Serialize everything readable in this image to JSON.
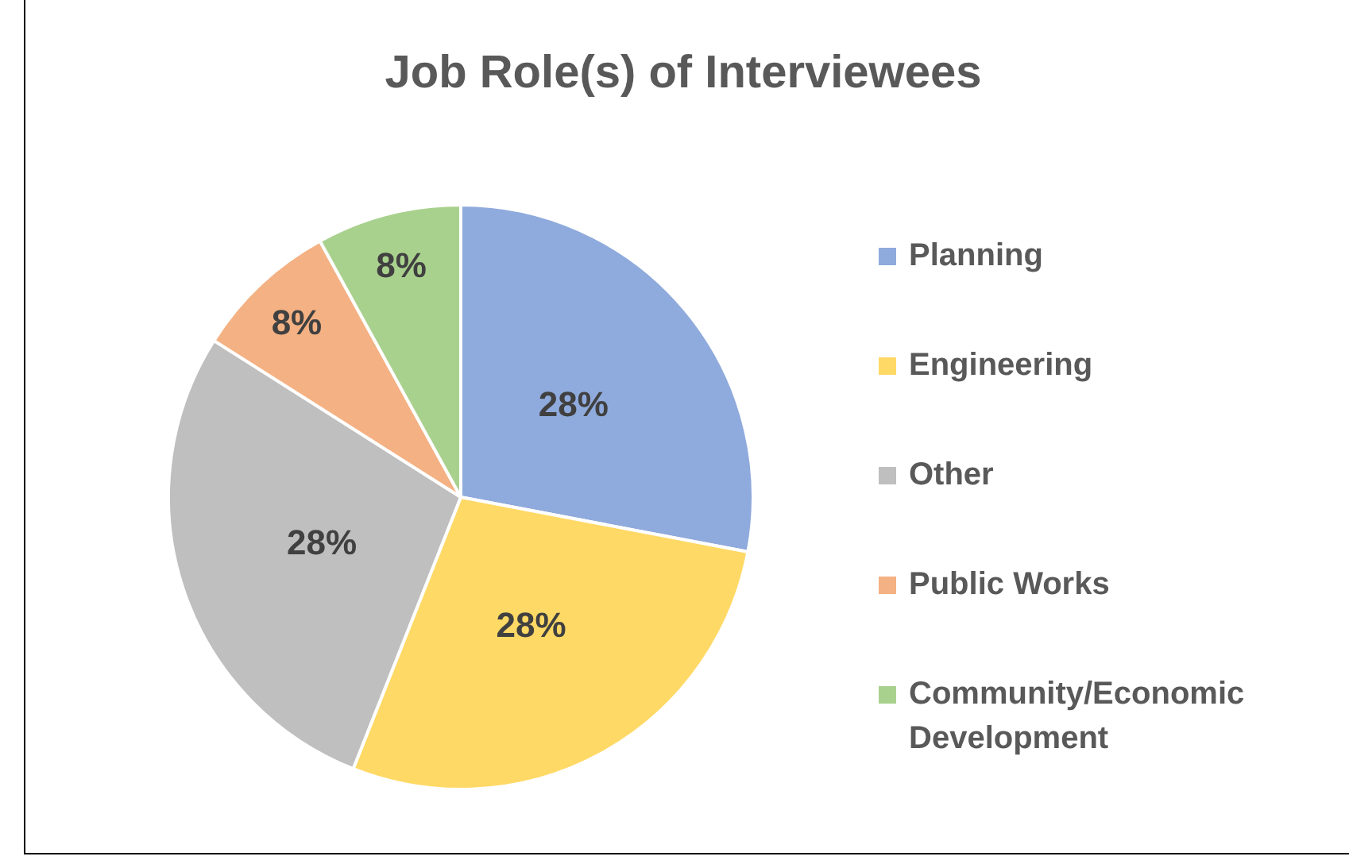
{
  "chart_data": {
    "type": "pie",
    "title": "Job Role(s) of Interviewees",
    "categories": [
      "Planning",
      "Engineering",
      "Other",
      "Public Works",
      "Community/Economic Development"
    ],
    "values": [
      28,
      28,
      28,
      8,
      8
    ],
    "value_labels": [
      "28%",
      "28%",
      "28%",
      "8%",
      "8%"
    ],
    "colors": [
      "#8faadc",
      "#ffd966",
      "#bfbfbf",
      "#f4b183",
      "#a9d18e"
    ],
    "legend": "right"
  }
}
